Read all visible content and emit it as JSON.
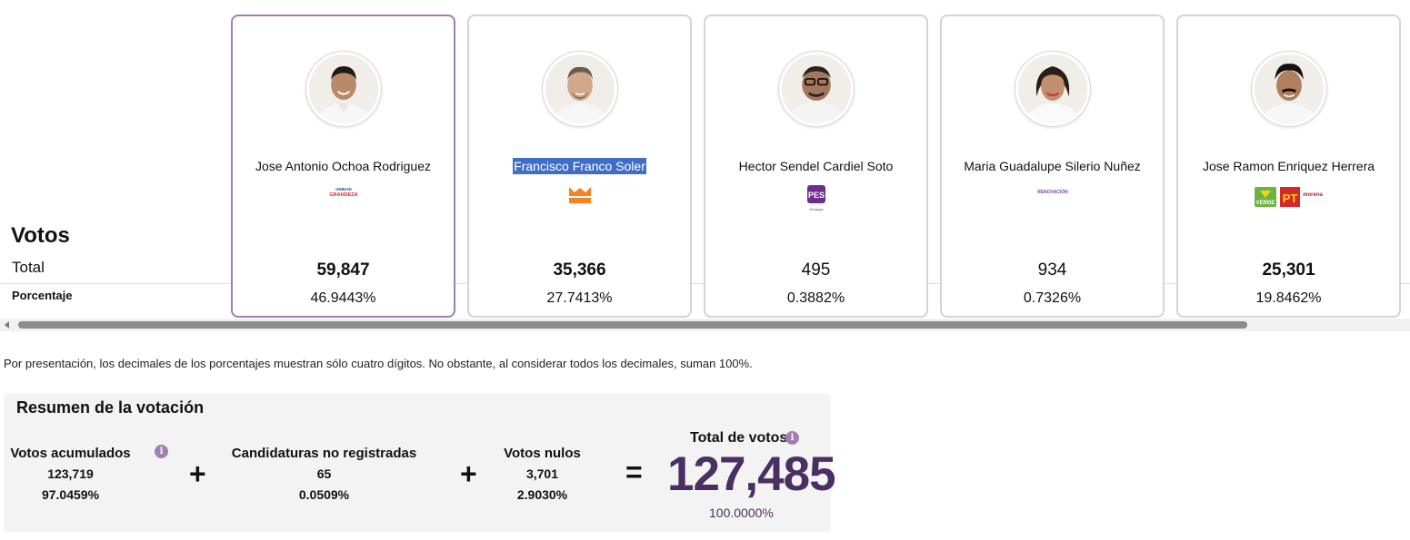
{
  "votes_section": {
    "title": "Votos",
    "total_label": "Total",
    "percentage_label": "Porcentaje"
  },
  "candidates": [
    {
      "name": "Jose Antonio Ochoa Rodriguez",
      "party_logo_text": "UNIDAD GRANDEZA",
      "votes": "59,847",
      "percentage": "46.9443%",
      "selected": true
    },
    {
      "name": "Francisco Franco Soler",
      "party_logo_text": "MOVIMIENTO CIUDADANO",
      "votes": "35,366",
      "percentage": "27.7413%",
      "selected": false
    },
    {
      "name": "Hector Sendel Cardiel Soto",
      "party_logo_text": "PES Durango",
      "votes": "495",
      "percentage": "0.3882%",
      "selected": false
    },
    {
      "name": "Maria Guadalupe Silerio Nuñez",
      "party_logo_text": "RENOVACIÓN",
      "votes": "934",
      "percentage": "0.7326%",
      "selected": false
    },
    {
      "name": "Jose Ramon Enriquez Herrera",
      "party_logo_text": "VERDE PT morena",
      "votes": "25,301",
      "percentage": "19.8462%",
      "selected": false
    }
  ],
  "note": "Por presentación, los decimales de los porcentajes muestran sólo cuatro dígitos. No obstante, al considerar todos los decimales, suman 100%.",
  "summary": {
    "title": "Resumen de la votación",
    "accumulated": {
      "label": "Votos acumulados",
      "value": "123,719",
      "percentage": "97.0459%"
    },
    "unregistered": {
      "label": "Candidaturas no registradas",
      "value": "65",
      "percentage": "0.0509%"
    },
    "null_votes": {
      "label": "Votos nulos",
      "value": "3,701",
      "percentage": "2.9030%"
    },
    "total": {
      "label": "Total de votos",
      "value": "127,485",
      "percentage": "100.0000%"
    },
    "plus_symbol": "+",
    "equals_symbol": "="
  },
  "colors": {
    "accent": "#a07fb3",
    "total_text": "#4b2f63",
    "highlight": "#3f6ec9"
  }
}
